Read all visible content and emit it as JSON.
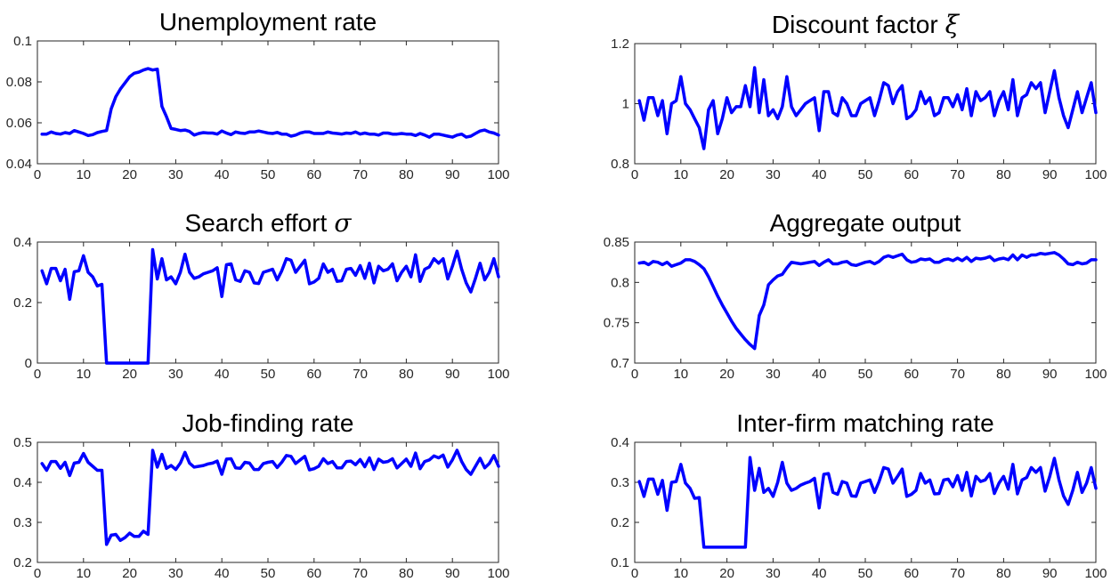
{
  "chart_data": [
    {
      "type": "line",
      "title": "Unemployment rate",
      "title_symbol": "",
      "xlim": [
        0,
        100
      ],
      "ylim": [
        0.04,
        0.1
      ],
      "xticks": [
        0,
        10,
        20,
        30,
        40,
        50,
        60,
        70,
        80,
        90,
        100
      ],
      "yticks": [
        0.04,
        0.06,
        0.08,
        0.1
      ],
      "ytick_labels": [
        "0.04",
        "0.06",
        "0.08",
        "0.1"
      ],
      "series": [
        {
          "color": "#0000ff",
          "x_start": 1,
          "x_step": 1,
          "values": [
            0.0545,
            0.0545,
            0.0555,
            0.0548,
            0.0545,
            0.0552,
            0.0548,
            0.0562,
            0.0555,
            0.0548,
            0.0538,
            0.0542,
            0.0552,
            0.0558,
            0.0562,
            0.0668,
            0.0728,
            0.0765,
            0.0795,
            0.0825,
            0.0842,
            0.0848,
            0.0858,
            0.0865,
            0.0858,
            0.0862,
            0.068,
            0.063,
            0.0572,
            0.0568,
            0.0562,
            0.0565,
            0.0558,
            0.054,
            0.0548,
            0.0552,
            0.055,
            0.055,
            0.0545,
            0.056,
            0.055,
            0.0542,
            0.0555,
            0.055,
            0.0548,
            0.0555,
            0.0555,
            0.056,
            0.0555,
            0.055,
            0.0548,
            0.0553,
            0.0545,
            0.0545,
            0.0535,
            0.054,
            0.055,
            0.0555,
            0.0555,
            0.0548,
            0.0548,
            0.0548,
            0.0555,
            0.055,
            0.0548,
            0.0545,
            0.055,
            0.0548,
            0.0555,
            0.0545,
            0.055,
            0.0545,
            0.0545,
            0.054,
            0.055,
            0.055,
            0.0545,
            0.0545,
            0.0548,
            0.0545,
            0.0545,
            0.0538,
            0.0548,
            0.054,
            0.053,
            0.0545,
            0.0545,
            0.054,
            0.0535,
            0.053,
            0.054,
            0.0545,
            0.053,
            0.0535,
            0.0548,
            0.056,
            0.0565,
            0.0555,
            0.055,
            0.054
          ]
        }
      ]
    },
    {
      "type": "line",
      "title": "Discount factor",
      "title_symbol": "ξ",
      "xlim": [
        0,
        100
      ],
      "ylim": [
        0.8,
        1.2
      ],
      "xticks": [
        0,
        10,
        20,
        30,
        40,
        50,
        60,
        70,
        80,
        90,
        100
      ],
      "yticks": [
        0.8,
        1,
        1.2
      ],
      "ytick_labels": [
        "0.8",
        "1",
        "1.2"
      ],
      "series": [
        {
          "color": "#0000ff",
          "x_start": 1,
          "x_step": 1,
          "values": [
            1.01,
            0.945,
            1.02,
            1.02,
            0.96,
            1.01,
            0.9,
            1.0,
            1.01,
            1.09,
            1.0,
            0.98,
            0.95,
            0.92,
            0.85,
            0.98,
            1.01,
            0.9,
            0.95,
            1.02,
            0.97,
            0.99,
            0.99,
            1.06,
            0.99,
            1.12,
            0.97,
            1.08,
            0.96,
            0.98,
            0.95,
            0.99,
            1.09,
            0.99,
            0.96,
            0.98,
            1.0,
            1.01,
            1.02,
            0.91,
            1.04,
            1.04,
            0.97,
            0.96,
            1.02,
            1.0,
            0.96,
            0.96,
            1.0,
            1.01,
            1.02,
            0.96,
            1.01,
            1.07,
            1.06,
            1.0,
            1.04,
            1.06,
            0.95,
            0.96,
            0.98,
            1.04,
            1.0,
            1.02,
            0.96,
            0.97,
            1.02,
            1.02,
            0.99,
            1.03,
            0.98,
            1.05,
            0.96,
            1.04,
            1.01,
            1.02,
            1.04,
            0.96,
            1.01,
            1.04,
            0.98,
            1.08,
            0.96,
            1.02,
            1.03,
            1.07,
            1.05,
            1.07,
            0.97,
            1.04,
            1.11,
            1.02,
            0.96,
            0.92,
            0.98,
            1.04,
            0.97,
            1.02,
            1.07,
            0.97
          ]
        }
      ]
    },
    {
      "type": "line",
      "title": "Search effort",
      "title_symbol": "σ",
      "xlim": [
        0,
        100
      ],
      "ylim": [
        0,
        0.4
      ],
      "xticks": [
        0,
        10,
        20,
        30,
        40,
        50,
        60,
        70,
        80,
        90,
        100
      ],
      "yticks": [
        0,
        0.2,
        0.4
      ],
      "ytick_labels": [
        "0",
        "0.2",
        "0.4"
      ],
      "series": [
        {
          "color": "#0000ff",
          "x_start": 1,
          "x_step": 1,
          "values": [
            0.305,
            0.262,
            0.313,
            0.313,
            0.272,
            0.31,
            0.211,
            0.302,
            0.305,
            0.355,
            0.3,
            0.285,
            0.255,
            0.26,
            0,
            0,
            0,
            0,
            0,
            0,
            0,
            0,
            0,
            0,
            0.375,
            0.278,
            0.345,
            0.275,
            0.285,
            0.262,
            0.3,
            0.36,
            0.3,
            0.28,
            0.285,
            0.295,
            0.3,
            0.305,
            0.315,
            0.22,
            0.325,
            0.328,
            0.275,
            0.27,
            0.305,
            0.3,
            0.265,
            0.263,
            0.3,
            0.305,
            0.31,
            0.275,
            0.305,
            0.345,
            0.34,
            0.3,
            0.32,
            0.34,
            0.262,
            0.268,
            0.28,
            0.328,
            0.3,
            0.31,
            0.27,
            0.272,
            0.31,
            0.313,
            0.29,
            0.322,
            0.28,
            0.33,
            0.265,
            0.32,
            0.305,
            0.31,
            0.328,
            0.272,
            0.3,
            0.32,
            0.285,
            0.358,
            0.27,
            0.31,
            0.318,
            0.345,
            0.33,
            0.345,
            0.278,
            0.32,
            0.37,
            0.31,
            0.265,
            0.235,
            0.28,
            0.33,
            0.275,
            0.3,
            0.345,
            0.285
          ]
        }
      ]
    },
    {
      "type": "line",
      "title": "Aggregate output",
      "title_symbol": "",
      "xlim": [
        0,
        100
      ],
      "ylim": [
        0.7,
        0.85
      ],
      "xticks": [
        0,
        10,
        20,
        30,
        40,
        50,
        60,
        70,
        80,
        90,
        100
      ],
      "yticks": [
        0.7,
        0.75,
        0.8,
        0.85
      ],
      "ytick_labels": [
        "0.7",
        "0.75",
        "0.8",
        "0.85"
      ],
      "series": [
        {
          "color": "#0000ff",
          "x_start": 1,
          "x_step": 1,
          "values": [
            0.824,
            0.825,
            0.822,
            0.826,
            0.825,
            0.822,
            0.825,
            0.82,
            0.822,
            0.824,
            0.828,
            0.828,
            0.826,
            0.822,
            0.817,
            0.807,
            0.795,
            0.783,
            0.772,
            0.762,
            0.752,
            0.743,
            0.736,
            0.729,
            0.723,
            0.718,
            0.759,
            0.772,
            0.797,
            0.803,
            0.808,
            0.81,
            0.818,
            0.825,
            0.824,
            0.823,
            0.824,
            0.825,
            0.826,
            0.821,
            0.825,
            0.828,
            0.823,
            0.823,
            0.825,
            0.826,
            0.822,
            0.821,
            0.823,
            0.825,
            0.826,
            0.823,
            0.826,
            0.831,
            0.833,
            0.831,
            0.833,
            0.835,
            0.828,
            0.825,
            0.826,
            0.829,
            0.828,
            0.829,
            0.825,
            0.825,
            0.828,
            0.829,
            0.827,
            0.83,
            0.827,
            0.831,
            0.826,
            0.83,
            0.829,
            0.83,
            0.832,
            0.827,
            0.829,
            0.83,
            0.828,
            0.834,
            0.828,
            0.834,
            0.831,
            0.834,
            0.834,
            0.836,
            0.835,
            0.836,
            0.837,
            0.834,
            0.829,
            0.823,
            0.822,
            0.825,
            0.823,
            0.824,
            0.828,
            0.828
          ]
        }
      ]
    },
    {
      "type": "line",
      "title": "Job-finding rate",
      "title_symbol": "",
      "xlim": [
        0,
        100
      ],
      "ylim": [
        0.2,
        0.5
      ],
      "xticks": [
        0,
        10,
        20,
        30,
        40,
        50,
        60,
        70,
        80,
        90,
        100
      ],
      "yticks": [
        0.2,
        0.3,
        0.4,
        0.5
      ],
      "ytick_labels": [
        "0.2",
        "0.3",
        "0.4",
        "0.5"
      ],
      "series": [
        {
          "color": "#0000ff",
          "x_start": 1,
          "x_step": 1,
          "values": [
            0.447,
            0.43,
            0.452,
            0.452,
            0.435,
            0.45,
            0.417,
            0.448,
            0.45,
            0.472,
            0.45,
            0.44,
            0.43,
            0.43,
            0.245,
            0.268,
            0.27,
            0.255,
            0.262,
            0.273,
            0.265,
            0.265,
            0.278,
            0.27,
            0.48,
            0.438,
            0.47,
            0.435,
            0.442,
            0.432,
            0.448,
            0.475,
            0.448,
            0.438,
            0.44,
            0.442,
            0.446,
            0.448,
            0.453,
            0.42,
            0.458,
            0.459,
            0.436,
            0.435,
            0.45,
            0.448,
            0.432,
            0.432,
            0.447,
            0.45,
            0.452,
            0.437,
            0.45,
            0.467,
            0.465,
            0.447,
            0.456,
            0.465,
            0.431,
            0.434,
            0.44,
            0.459,
            0.447,
            0.452,
            0.436,
            0.436,
            0.452,
            0.453,
            0.444,
            0.457,
            0.439,
            0.461,
            0.432,
            0.458,
            0.45,
            0.452,
            0.459,
            0.436,
            0.447,
            0.458,
            0.44,
            0.473,
            0.434,
            0.452,
            0.456,
            0.466,
            0.461,
            0.468,
            0.438,
            0.456,
            0.48,
            0.452,
            0.432,
            0.42,
            0.44,
            0.46,
            0.436,
            0.447,
            0.467,
            0.44
          ]
        }
      ]
    },
    {
      "type": "line",
      "title": "Inter-firm matching rate",
      "title_symbol": "",
      "xlim": [
        0,
        100
      ],
      "ylim": [
        0.1,
        0.4
      ],
      "xticks": [
        0,
        10,
        20,
        30,
        40,
        50,
        60,
        70,
        80,
        90,
        100
      ],
      "yticks": [
        0.1,
        0.2,
        0.3,
        0.4
      ],
      "ytick_labels": [
        "0.1",
        "0.2",
        "0.3",
        "0.4"
      ],
      "series": [
        {
          "color": "#0000ff",
          "x_start": 1,
          "x_step": 1,
          "values": [
            0.302,
            0.265,
            0.308,
            0.308,
            0.27,
            0.305,
            0.23,
            0.3,
            0.302,
            0.345,
            0.298,
            0.285,
            0.26,
            0.262,
            0.138,
            0.138,
            0.138,
            0.138,
            0.138,
            0.138,
            0.138,
            0.138,
            0.138,
            0.138,
            0.362,
            0.28,
            0.335,
            0.275,
            0.285,
            0.265,
            0.3,
            0.35,
            0.298,
            0.28,
            0.285,
            0.293,
            0.298,
            0.302,
            0.31,
            0.236,
            0.32,
            0.322,
            0.275,
            0.27,
            0.302,
            0.298,
            0.266,
            0.265,
            0.298,
            0.302,
            0.306,
            0.275,
            0.302,
            0.337,
            0.333,
            0.298,
            0.315,
            0.333,
            0.265,
            0.27,
            0.28,
            0.322,
            0.298,
            0.306,
            0.271,
            0.272,
            0.306,
            0.308,
            0.289,
            0.317,
            0.28,
            0.325,
            0.266,
            0.315,
            0.302,
            0.306,
            0.322,
            0.272,
            0.298,
            0.315,
            0.283,
            0.345,
            0.271,
            0.306,
            0.312,
            0.337,
            0.325,
            0.337,
            0.278,
            0.315,
            0.36,
            0.306,
            0.266,
            0.245,
            0.28,
            0.325,
            0.275,
            0.298,
            0.337,
            0.285
          ]
        }
      ]
    }
  ]
}
